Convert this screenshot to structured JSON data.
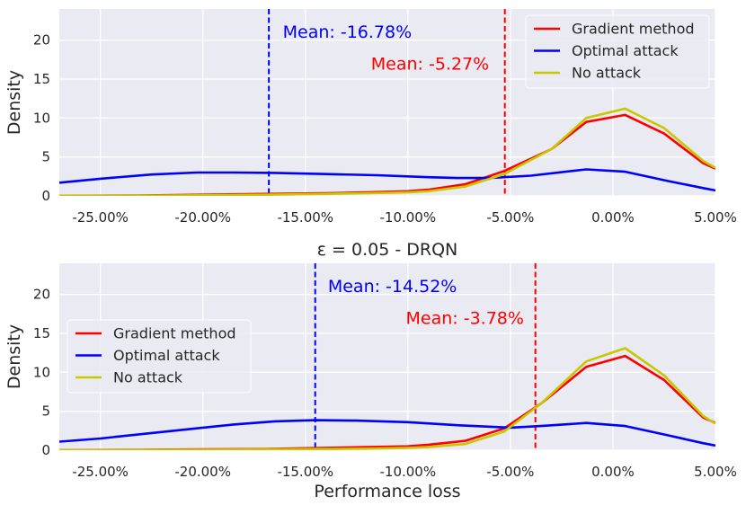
{
  "chart_data": [
    {
      "type": "line",
      "title": "",
      "xlabel": "",
      "ylabel": "Density",
      "xlim": [
        -27.0,
        5.0
      ],
      "ylim": [
        0,
        24
      ],
      "yticks": [
        0,
        5,
        10,
        15,
        20
      ],
      "xticks": [
        -25,
        -20,
        -15,
        -10,
        -5,
        0,
        5
      ],
      "xtick_labels": [
        "-25.00%",
        "-20.00%",
        "-15.00%",
        "-10.00%",
        "-5.00%",
        "0.00%",
        "5.00%"
      ],
      "grid": true,
      "legend_position": "top-right",
      "series": [
        {
          "name": "Gradient method",
          "color": "#ff0000",
          "x": [
            -27,
            -23,
            -20,
            -17,
            -14,
            -12,
            -10,
            -9,
            -7.2,
            -5.3,
            -3,
            -1.3,
            0.6,
            2.5,
            4.4,
            5
          ],
          "y": [
            0,
            0.05,
            0.15,
            0.25,
            0.35,
            0.45,
            0.6,
            0.8,
            1.5,
            3.2,
            6.0,
            9.5,
            10.4,
            8.0,
            4.2,
            3.5
          ]
        },
        {
          "name": "Optimal attack",
          "color": "#0000ff",
          "x": [
            -27,
            -25,
            -22.5,
            -20.3,
            -18.5,
            -16.5,
            -14,
            -11.5,
            -9,
            -7.5,
            -6,
            -4,
            -1.3,
            0.6,
            2.7,
            4.4,
            5
          ],
          "y": [
            1.7,
            2.2,
            2.75,
            3.0,
            3.0,
            2.95,
            2.8,
            2.65,
            2.4,
            2.3,
            2.3,
            2.6,
            3.4,
            3.1,
            1.9,
            1.0,
            0.7
          ]
        },
        {
          "name": "No attack",
          "color": "#c8c800",
          "x": [
            -27,
            -23,
            -20,
            -17,
            -14,
            -12,
            -10,
            -9,
            -7.2,
            -5.3,
            -3,
            -1.3,
            0.6,
            2.5,
            4.4,
            5
          ],
          "y": [
            0,
            0.02,
            0.08,
            0.15,
            0.25,
            0.35,
            0.45,
            0.6,
            1.2,
            2.8,
            6.0,
            10.0,
            11.2,
            8.7,
            4.5,
            3.6
          ]
        }
      ],
      "vlines": [
        {
          "name": "Optimal attack mean",
          "x": -16.78,
          "color": "#0000ff"
        },
        {
          "name": "Gradient method mean",
          "x": -5.27,
          "color": "#ff0000"
        }
      ],
      "annotations": [
        {
          "text": "Mean: -16.78%",
          "x": -16.1,
          "y": 20.3,
          "color": "#0000ff"
        },
        {
          "text": "Mean: -5.27%",
          "x": -11.8,
          "y": 16.2,
          "color": "#ff0000"
        }
      ]
    },
    {
      "type": "line",
      "title": "ε = 0.05 - DRQN",
      "xlabel": "Performance loss",
      "ylabel": "Density",
      "xlim": [
        -27.0,
        5.0
      ],
      "ylim": [
        0,
        24
      ],
      "yticks": [
        0,
        5,
        10,
        15,
        20
      ],
      "xticks": [
        -25,
        -20,
        -15,
        -10,
        -5,
        0,
        5
      ],
      "xtick_labels": [
        "-25.00%",
        "-20.00%",
        "-15.00%",
        "-10.00%",
        "-5.00%",
        "0.00%",
        "5.00%"
      ],
      "grid": true,
      "legend_position": "center-left",
      "series": [
        {
          "name": "Gradient method",
          "color": "#ff0000",
          "x": [
            -27,
            -23,
            -20,
            -17,
            -14,
            -12,
            -10,
            -9,
            -7.2,
            -5.3,
            -3.5,
            -1.3,
            0.6,
            2.5,
            4.4,
            5
          ],
          "y": [
            0,
            0.05,
            0.1,
            0.15,
            0.3,
            0.4,
            0.5,
            0.7,
            1.2,
            2.8,
            6.0,
            10.7,
            12.1,
            9.0,
            4.2,
            3.5
          ]
        },
        {
          "name": "Optimal attack",
          "color": "#0000ff",
          "x": [
            -27,
            -25,
            -22.5,
            -20.3,
            -18.5,
            -16.5,
            -14.5,
            -12.5,
            -10,
            -7.5,
            -5,
            -3.5,
            -1.3,
            0.6,
            2.7,
            4.4,
            5
          ],
          "y": [
            1.1,
            1.5,
            2.2,
            2.8,
            3.3,
            3.7,
            3.85,
            3.8,
            3.6,
            3.2,
            2.9,
            3.1,
            3.5,
            3.1,
            1.9,
            0.9,
            0.6
          ]
        },
        {
          "name": "No attack",
          "color": "#c8c800",
          "x": [
            -27,
            -23,
            -20,
            -17,
            -14,
            -12,
            -10,
            -9,
            -7.2,
            -5.3,
            -3.5,
            -1.3,
            0.6,
            2.5,
            4.4,
            5
          ],
          "y": [
            0,
            0.02,
            0.05,
            0.1,
            0.15,
            0.2,
            0.3,
            0.4,
            0.8,
            2.4,
            6.0,
            11.4,
            13.1,
            9.6,
            4.4,
            3.4
          ]
        }
      ],
      "vlines": [
        {
          "name": "Optimal attack mean",
          "x": -14.52,
          "color": "#0000ff"
        },
        {
          "name": "Gradient method mean",
          "x": -3.78,
          "color": "#ff0000"
        }
      ],
      "annotations": [
        {
          "text": "Mean: -14.52%",
          "x": -13.9,
          "y": 20.3,
          "color": "#0000ff"
        },
        {
          "text": "Mean: -3.78%",
          "x": -10.1,
          "y": 16.2,
          "color": "#ff0000"
        }
      ]
    }
  ]
}
